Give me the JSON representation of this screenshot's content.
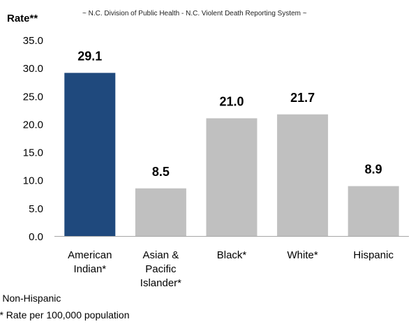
{
  "chart_data": {
    "type": "bar",
    "source": "~ N.C. Division of Public Health - N.C. Violent Death Reporting System ~",
    "ylabel": "Rate**",
    "xlabel": "",
    "ylim": [
      0,
      35
    ],
    "yticks": [
      "0.0",
      "5.0",
      "10.0",
      "15.0",
      "20.0",
      "25.0",
      "30.0",
      "35.0"
    ],
    "categories": [
      [
        "American",
        "Indian*"
      ],
      [
        "Asian &",
        "Pacific",
        "Islander*"
      ],
      [
        "Black*"
      ],
      [
        "White*"
      ],
      [
        "Hispanic"
      ]
    ],
    "values": [
      29.1,
      8.5,
      21.0,
      21.7,
      8.9
    ],
    "value_labels": [
      "29.1",
      "8.5",
      "21.0",
      "21.7",
      "8.9"
    ],
    "bar_colors": [
      "#1f497d",
      "#c0c0c0",
      "#c0c0c0",
      "#c0c0c0",
      "#c0c0c0"
    ],
    "grid": false,
    "legend": "none"
  },
  "footnotes": {
    "line1": "* Non-Hispanic",
    "line2": "** Rate per 100,000 population"
  }
}
